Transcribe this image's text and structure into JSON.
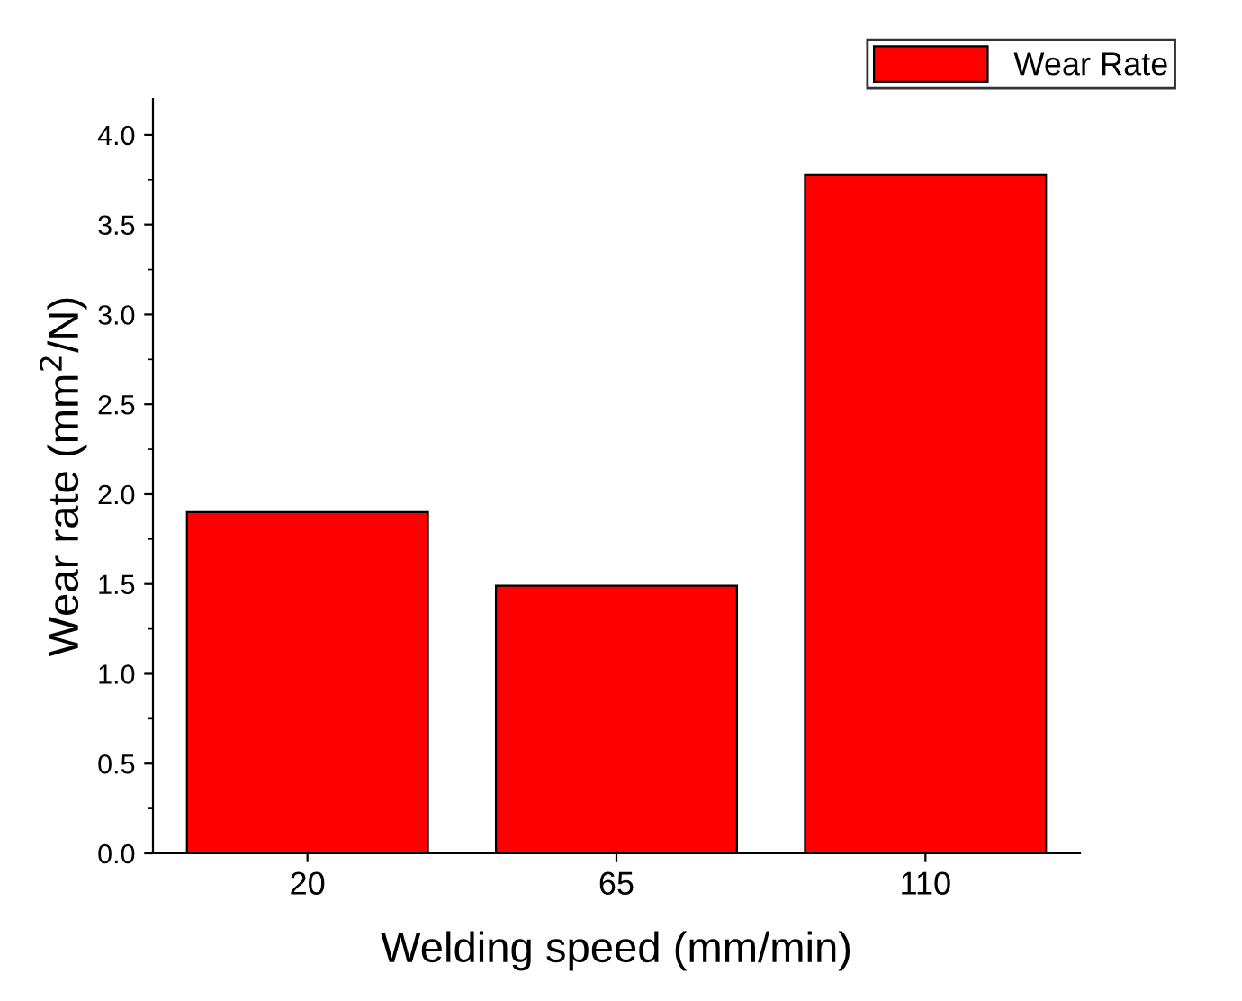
{
  "chart_data": {
    "type": "bar",
    "xlabel": "Welding speed (mm/min)",
    "ylabel": "Wear rate (mm$^{2}$/N)",
    "categories": [
      "20",
      "65",
      "110"
    ],
    "series": [
      {
        "name": "Wear Rate",
        "color": "#ff0000",
        "values": [
          1.9,
          1.49,
          3.78
        ]
      }
    ],
    "ylim": [
      0,
      4.2
    ],
    "yticks": [
      {
        "value": 0,
        "label": "0.0"
      },
      {
        "value": 0.5,
        "label": "0.5"
      },
      {
        "value": 1,
        "label": "1.0"
      },
      {
        "value": 1.5,
        "label": "1.5"
      },
      {
        "value": 2,
        "label": "2.0"
      },
      {
        "value": 2.5,
        "label": "2.5"
      },
      {
        "value": 3,
        "label": "3.0"
      },
      {
        "value": 3.5,
        "label": "3.5"
      },
      {
        "value": 4,
        "label": "4.0"
      }
    ],
    "legend": "top right",
    "grid": false
  }
}
